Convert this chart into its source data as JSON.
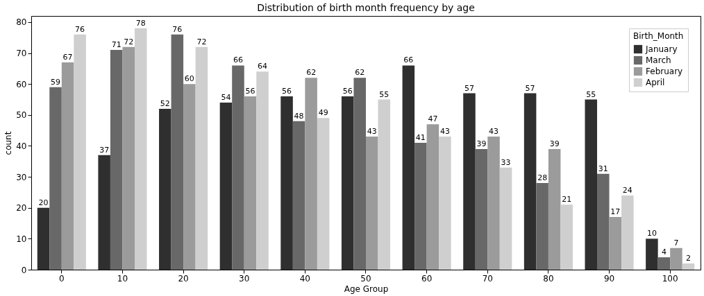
{
  "chart_data": {
    "type": "bar",
    "title": "Distribution of birth month frequency by age",
    "xlabel": "Age Group",
    "ylabel": "count",
    "legend_title": "Birth_Month",
    "categories": [
      "0",
      "10",
      "20",
      "30",
      "40",
      "50",
      "60",
      "70",
      "80",
      "90",
      "100"
    ],
    "series": [
      {
        "name": "January",
        "color": "#2f2f2f",
        "values": [
          20,
          37,
          52,
          54,
          56,
          56,
          66,
          57,
          57,
          55,
          10
        ]
      },
      {
        "name": "March",
        "color": "#686868",
        "values": [
          59,
          71,
          76,
          66,
          48,
          62,
          41,
          39,
          28,
          31,
          4
        ]
      },
      {
        "name": "February",
        "color": "#9b9b9b",
        "values": [
          67,
          72,
          60,
          56,
          62,
          43,
          47,
          43,
          39,
          17,
          7
        ]
      },
      {
        "name": "April",
        "color": "#cfcfcf",
        "values": [
          76,
          78,
          72,
          64,
          49,
          55,
          43,
          33,
          21,
          24,
          2
        ]
      }
    ],
    "ylim": [
      0,
      82
    ],
    "yticks": [
      0,
      10,
      20,
      30,
      40,
      50,
      60,
      70,
      80
    ],
    "data_labels": true,
    "legend": "top right"
  }
}
